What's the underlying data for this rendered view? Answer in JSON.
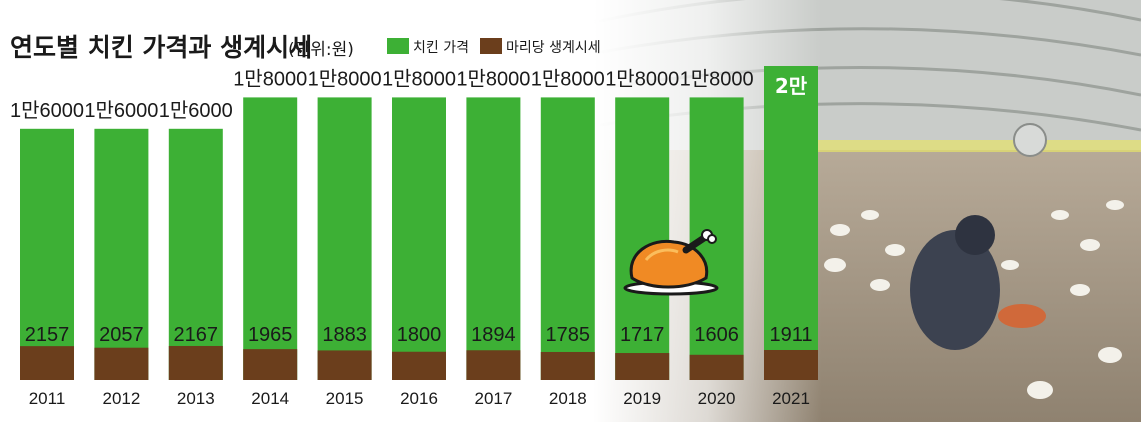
{
  "header": {
    "title": "연도별 치킨 가격과 생계시세",
    "unit": "(단위:원)"
  },
  "colors": {
    "price": "#3db035",
    "cost": "#6b3e1c",
    "label_text": "#1a1a1a"
  },
  "icons": {
    "chicken": "roast-chicken-icon",
    "photo": "poultry-farm-photo"
  },
  "chart_data": {
    "type": "bar",
    "title": "연도별 치킨 가격과 생계시세",
    "categories": [
      "2011",
      "2012",
      "2013",
      "2014",
      "2015",
      "2016",
      "2017",
      "2018",
      "2019",
      "2020",
      "2021"
    ],
    "series": [
      {
        "name": "치킨 가격",
        "values": [
          16000,
          16000,
          16000,
          18000,
          18000,
          18000,
          18000,
          18000,
          18000,
          18000,
          20000
        ],
        "labels": [
          "1만6000",
          "1만6000",
          "1만6000",
          "1만8000",
          "1만8000",
          "1만8000",
          "1만8000",
          "1만8000",
          "1만8000",
          "1만8000",
          "2만"
        ]
      },
      {
        "name": "마리당 생계시세",
        "values": [
          2157,
          2057,
          2167,
          1965,
          1883,
          1800,
          1894,
          1785,
          1717,
          1606,
          1911
        ],
        "labels": [
          "2157",
          "2057",
          "2167",
          "1965",
          "1883",
          "1800",
          "1894",
          "1785",
          "1717",
          "1606",
          "1911"
        ]
      }
    ],
    "legend_position": "top",
    "grid": false
  }
}
